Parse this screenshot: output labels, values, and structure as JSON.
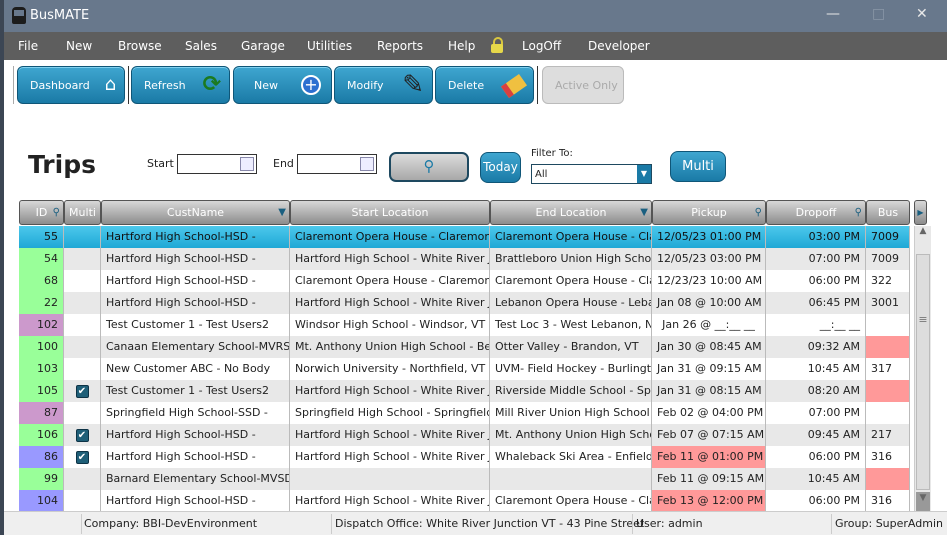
{
  "window": {
    "title": "BusMATE",
    "icon": "bus-icon"
  },
  "menu": [
    "File",
    "New",
    "Browse",
    "Sales",
    "Garage",
    "Utilities",
    "Reports",
    "Help",
    "LogOff",
    "Developer"
  ],
  "toolbar": {
    "dashboard": "Dashboard",
    "refresh": "Refresh",
    "new": "New",
    "modify": "Modify",
    "delete": "Delete",
    "active_only": "Active Only"
  },
  "page": {
    "title": "Trips",
    "start_label": "Start",
    "start_value": "",
    "end_label": "End",
    "end_value": "",
    "today": "Today",
    "filter_label": "Filter To:",
    "filter_value": "All",
    "multi": "Multi"
  },
  "colors": {
    "accent": "#1a7aa6",
    "selected": "#2fb8e2",
    "status_green": "#99ff99",
    "status_purple": "#cc99cc",
    "status_blue": "#9999ff",
    "alert": "#ff9999"
  },
  "columns": [
    "ID",
    "Multi",
    "CustName",
    "Start Location",
    "End Location",
    "Pickup",
    "Dropoff",
    "Bus"
  ],
  "rows": [
    {
      "id": "55",
      "multi": false,
      "cust": "Hartford High School-HSD -",
      "start": "Claremont Opera House - Claremont, N",
      "end": "Claremont Opera House - Clare",
      "pickup": "12/05/23 01:00 PM",
      "dropoff": "03:00 PM",
      "bus": "7009",
      "color": "selected",
      "pickup_alert": false,
      "bus_alert": false
    },
    {
      "id": "54",
      "multi": false,
      "cust": "Hartford High School-HSD -",
      "start": "Hartford High School - White River Jct",
      "end": "Brattleboro Union High School -",
      "pickup": "12/05/23 03:00 PM",
      "dropoff": "07:00 PM",
      "bus": "7009",
      "color": "green",
      "pickup_alert": false,
      "bus_alert": false
    },
    {
      "id": "68",
      "multi": false,
      "cust": "Hartford High School-HSD -",
      "start": "Claremont Opera House - Claremont, N",
      "end": "Claremont Opera House - Clare",
      "pickup": "12/23/23 10:00 AM",
      "dropoff": "06:00 PM",
      "bus": "322",
      "color": "green",
      "pickup_alert": false,
      "bus_alert": false
    },
    {
      "id": "22",
      "multi": false,
      "cust": "Hartford High School-HSD -",
      "start": "Hartford High School - White River Jct",
      "end": "Lebanon Opera House - Lebanon",
      "pickup": "Jan 08 @ 10:00 AM",
      "dropoff": "06:45 PM",
      "bus": "3001",
      "color": "green",
      "pickup_alert": false,
      "bus_alert": false
    },
    {
      "id": "102",
      "multi": false,
      "cust": "Test Customer 1 - Test Users2",
      "start": "Windsor High School - Windsor, VT",
      "end": "Test Loc 3 - West Lebanon, NH",
      "pickup": "Jan 26 @ __:__ __",
      "dropoff": "__:__ __",
      "bus": "",
      "color": "purple",
      "pickup_alert": false,
      "bus_alert": false
    },
    {
      "id": "100",
      "multi": false,
      "cust": "Canaan Elementary School-MVRSD -",
      "start": "Mt. Anthony Union High School - Bennin",
      "end": "Otter Valley - Brandon, VT",
      "pickup": "Jan 30 @ 08:45 AM",
      "dropoff": "09:32 AM",
      "bus": "",
      "color": "green",
      "pickup_alert": false,
      "bus_alert": true
    },
    {
      "id": "103",
      "multi": false,
      "cust": "New Customer ABC - No Body",
      "start": "Norwich University - Northfield, VT",
      "end": "UVM- Field Hockey - Burlington",
      "pickup": "Jan 31 @ 09:15 AM",
      "dropoff": "10:45 AM",
      "bus": "317",
      "color": "green",
      "pickup_alert": false,
      "bus_alert": false
    },
    {
      "id": "105",
      "multi": true,
      "cust": "Test Customer 1 - Test Users2",
      "start": "Hartford High School - White River Jct",
      "end": "Riverside Middle School - Spring",
      "pickup": "Jan 31 @ 08:15 AM",
      "dropoff": "08:20 AM",
      "bus": "",
      "color": "green",
      "pickup_alert": false,
      "bus_alert": true
    },
    {
      "id": "87",
      "multi": false,
      "cust": "Springfield High School-SSD -",
      "start": "Springfield High School - Springfield , V",
      "end": "Mill River Union High School - Cl",
      "pickup": "Feb 02 @ 04:00 PM",
      "dropoff": "07:00 PM",
      "bus": "",
      "color": "purple",
      "pickup_alert": false,
      "bus_alert": false
    },
    {
      "id": "106",
      "multi": true,
      "cust": "Hartford High School-HSD -",
      "start": "Hartford High School - White River Jct",
      "end": "Mt. Anthony Union High School",
      "pickup": "Feb 07 @ 07:15 AM",
      "dropoff": "09:45 AM",
      "bus": "217",
      "color": "green",
      "pickup_alert": false,
      "bus_alert": false
    },
    {
      "id": "86",
      "multi": true,
      "cust": "Hartford High School-HSD -",
      "start": "Hartford High School - White River Jct",
      "end": "Whaleback Ski Area - Enfield, N",
      "pickup": "Feb 11 @ 01:00 PM",
      "dropoff": "06:00 PM",
      "bus": "316",
      "color": "blue",
      "pickup_alert": true,
      "bus_alert": false
    },
    {
      "id": "99",
      "multi": false,
      "cust": "Barnard Elementary School-MVSD -",
      "start": "",
      "end": "",
      "pickup": "Feb 11 @ 09:15 AM",
      "dropoff": "10:45 AM",
      "bus": "",
      "color": "green",
      "pickup_alert": false,
      "bus_alert": true
    },
    {
      "id": "104",
      "multi": false,
      "cust": "Hartford High School-HSD -",
      "start": "Hartford High School - White River Jct",
      "end": "Claremont Opera House - Clare",
      "pickup": "Feb 13 @ 12:00 PM",
      "dropoff": "06:00 PM",
      "bus": "316",
      "color": "blue",
      "pickup_alert": true,
      "bus_alert": false
    }
  ],
  "status": {
    "company": "Company: BBI-DevEnvironment",
    "office": "Dispatch Office: White River Junction VT - 43 Pine Street",
    "user": "User: admin",
    "group": "Group: SuperAdmin"
  }
}
